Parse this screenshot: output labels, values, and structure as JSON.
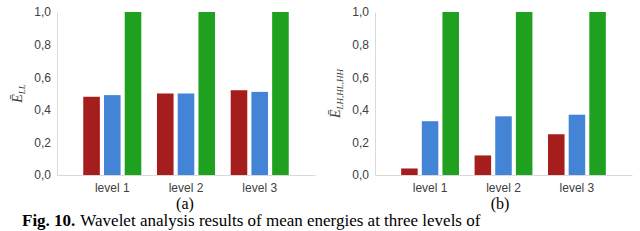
{
  "chart_data": [
    {
      "type": "bar",
      "title": "(a)",
      "ylabel": "ĒLL",
      "categories": [
        "level 1",
        "level 2",
        "level 3"
      ],
      "series": [
        {
          "color": "#a51d1d",
          "values": [
            0.48,
            0.5,
            0.52
          ]
        },
        {
          "color": "#4384d6",
          "values": [
            0.49,
            0.5,
            0.51
          ]
        },
        {
          "color": "#1fa01f",
          "values": [
            1.0,
            1.0,
            1.0
          ]
        }
      ],
      "ylim": [
        0,
        1
      ],
      "yticks": [
        {
          "value": 0,
          "label": "0,0"
        },
        {
          "value": 0.2,
          "label": "0,2"
        },
        {
          "value": 0.4,
          "label": "0,4"
        },
        {
          "value": 0.6,
          "label": "0,6"
        },
        {
          "value": 0.8,
          "label": "0,8"
        },
        {
          "value": 1,
          "label": "1,0"
        }
      ],
      "grid": false
    },
    {
      "type": "bar",
      "title": "(b)",
      "ylabel": "ĒLH,HL,HH",
      "categories": [
        "level 1",
        "level 2",
        "level 3"
      ],
      "series": [
        {
          "color": "#a51d1d",
          "values": [
            0.04,
            0.12,
            0.25
          ]
        },
        {
          "color": "#4384d6",
          "values": [
            0.33,
            0.36,
            0.37
          ]
        },
        {
          "color": "#1fa01f",
          "values": [
            1.0,
            1.0,
            1.0
          ]
        }
      ],
      "ylim": [
        0,
        1
      ],
      "yticks": [
        {
          "value": 0,
          "label": "0,0"
        },
        {
          "value": 0.2,
          "label": "0,2"
        },
        {
          "value": 0.4,
          "label": "0,4"
        },
        {
          "value": 0.6,
          "label": "0,6"
        },
        {
          "value": 0.8,
          "label": "0,8"
        },
        {
          "value": 1,
          "label": "1,0"
        }
      ],
      "grid": false
    }
  ],
  "caption": {
    "label": "Fig. 10.",
    "text": "Wavelet analysis results of mean energies at three levels of"
  }
}
